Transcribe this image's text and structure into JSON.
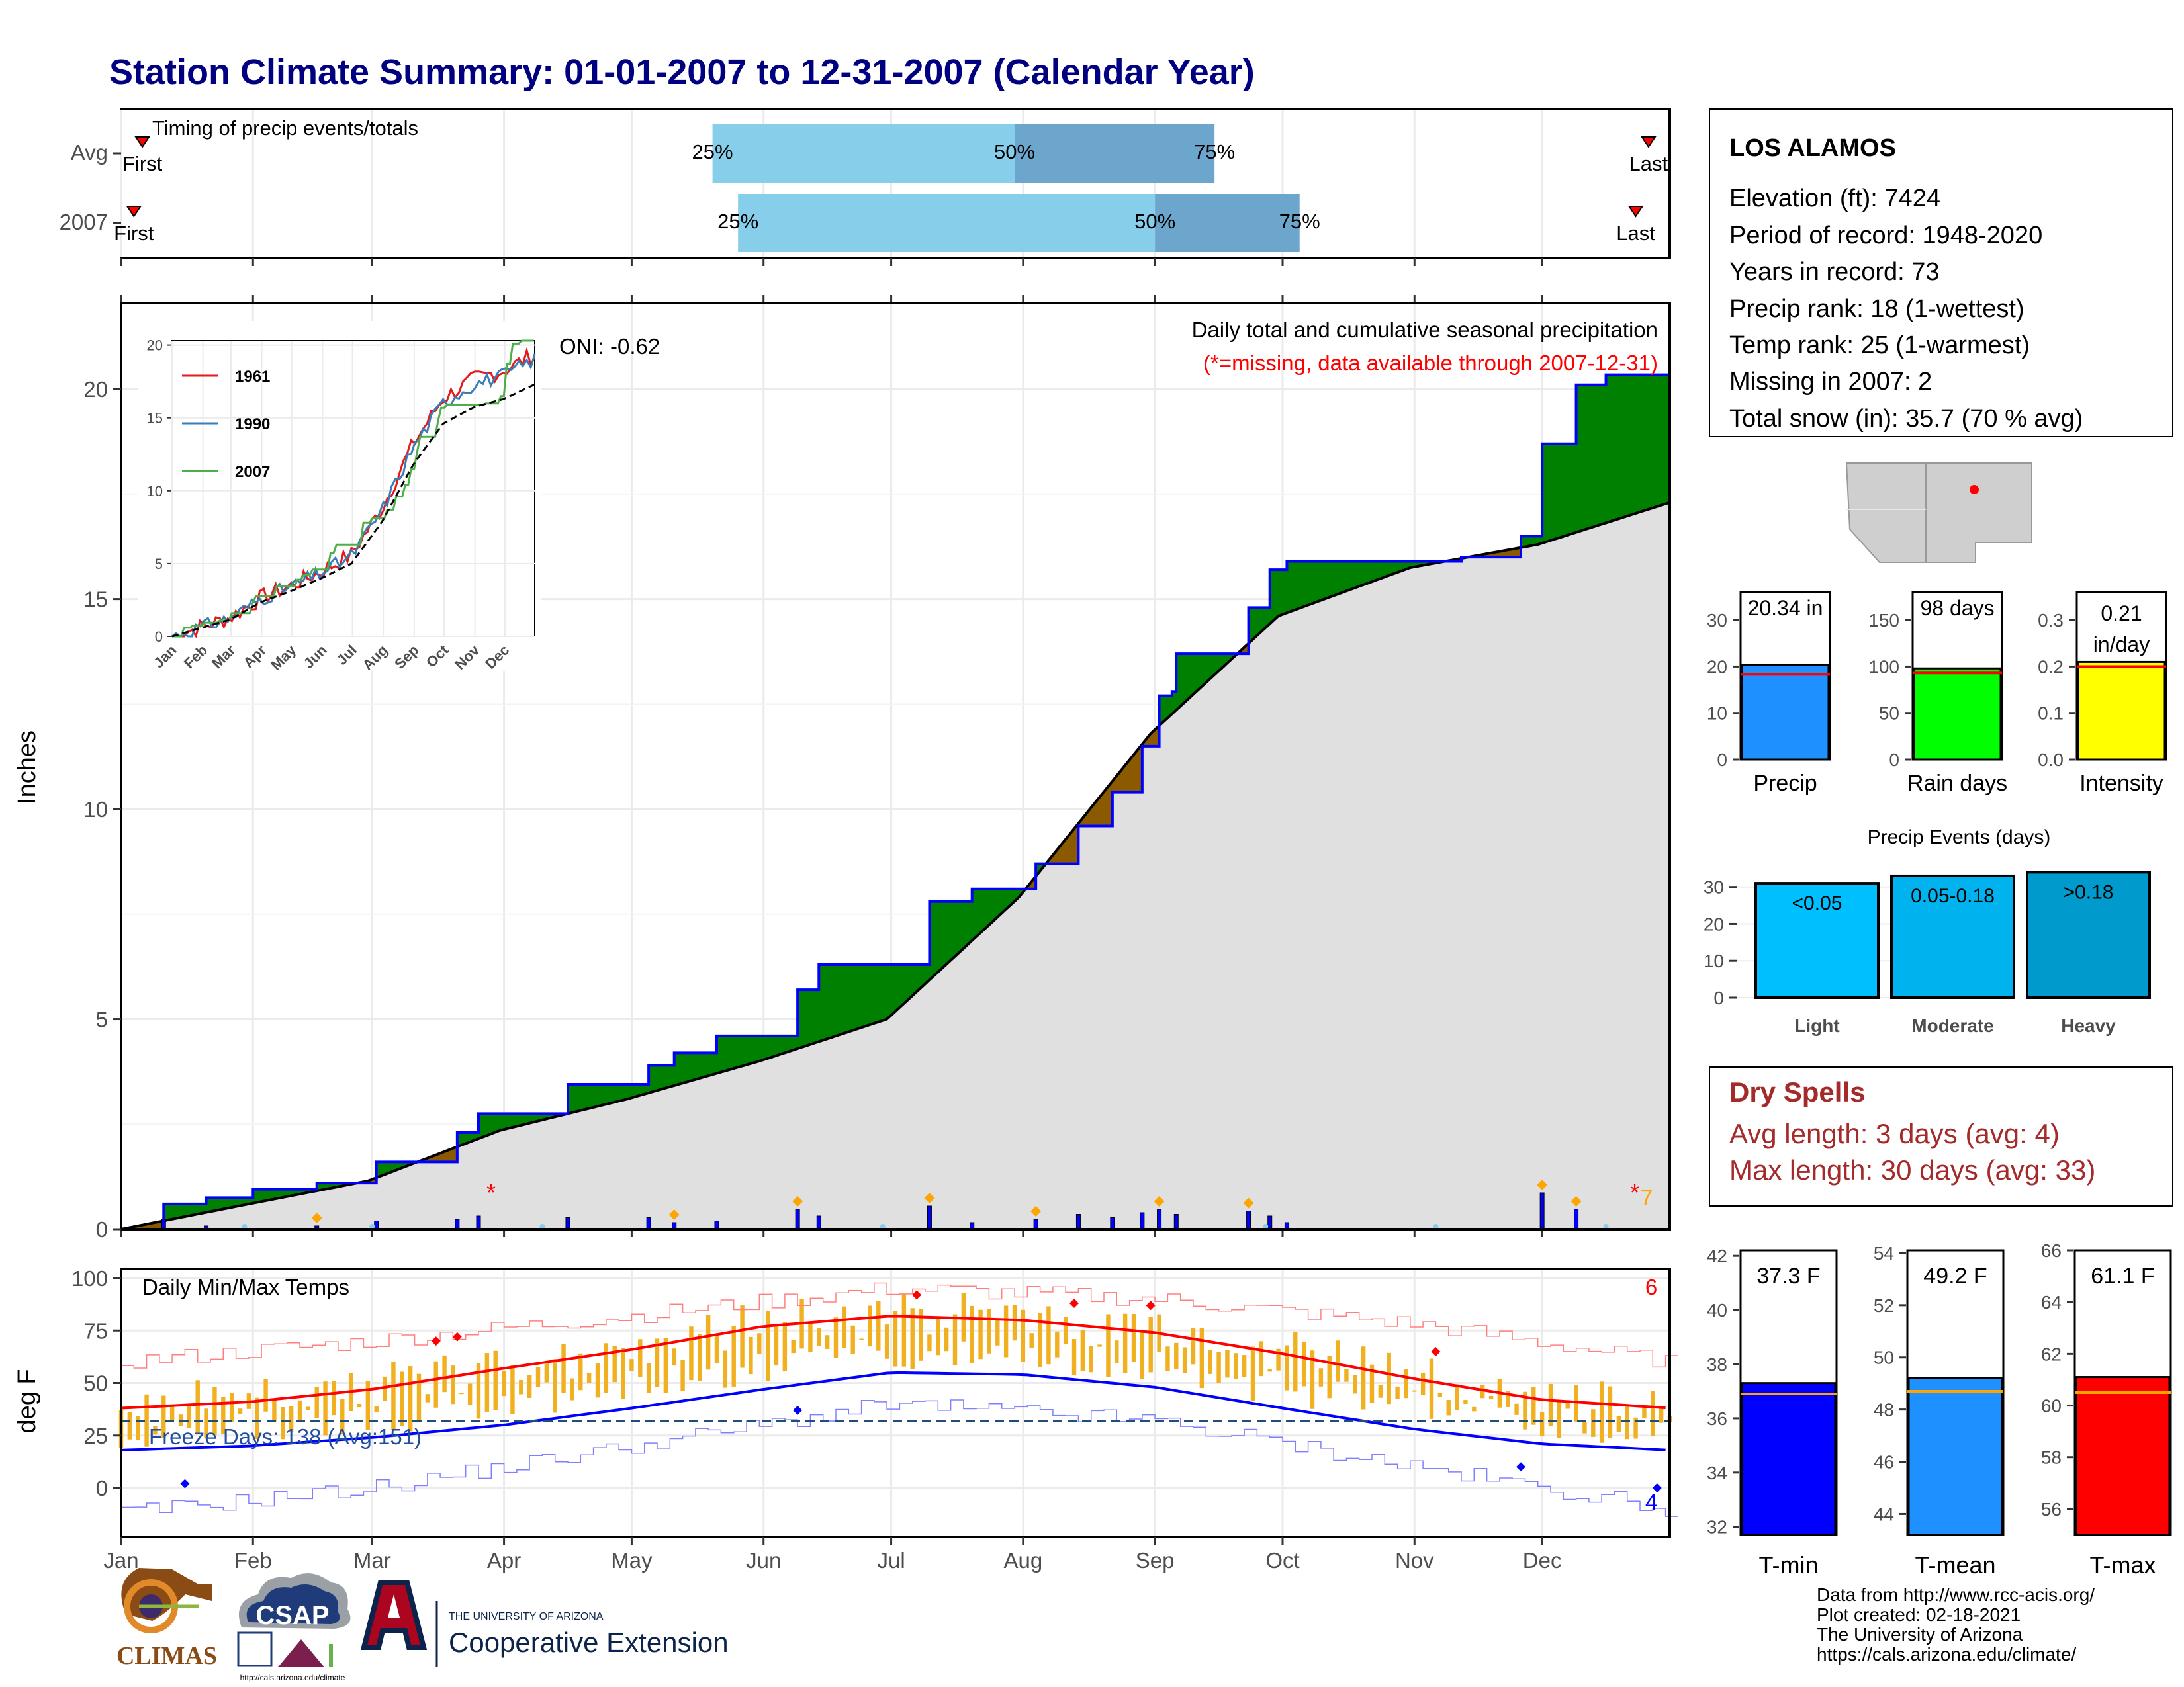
{
  "title": "Station Climate Summary: 01-01-2007 to 12-31-2007 (Calendar Year)",
  "colors": {
    "title": "#000080",
    "grid": "#ebebeb",
    "precip_line": "#0000ff",
    "surplus": "#008000",
    "deficit": "#8b5a00",
    "normal_fill": "#e0e0e0",
    "q1": "#87ceeb",
    "q2": "#6ca6cd",
    "tmax": "#ff0000",
    "tmin": "#0000ff",
    "range": "#f0b020",
    "event_marker": "#ffa500",
    "dryspell": "#a52a2a"
  },
  "timing": {
    "title": "Timing of precip events/totals",
    "rows": [
      {
        "label": "Avg",
        "first_doy": 6,
        "q25_doy": 140,
        "q50_doy": 211,
        "q75_doy": 258,
        "last_doy": 360,
        "first_label": "First",
        "last_label": "Last",
        "q25_label": "25%",
        "q50_label": "50%",
        "q75_label": "75%"
      },
      {
        "label": "2007",
        "first_doy": 4,
        "q25_doy": 146,
        "q50_doy": 244,
        "q75_doy": 278,
        "last_doy": 357,
        "first_label": "First",
        "last_label": "Last",
        "q25_label": "25%",
        "q50_label": "50%",
        "q75_label": "75%"
      }
    ]
  },
  "months": [
    "Jan",
    "Feb",
    "Mar",
    "Apr",
    "May",
    "Jun",
    "Jul",
    "Aug",
    "Sep",
    "Oct",
    "Nov",
    "Dec"
  ],
  "precip_panel": {
    "ylabel": "Inches",
    "header": "Daily total and cumulative seasonal precipitation",
    "note": "(*=missing, data available through 2007-12-31)",
    "oni": "ONI: -0.62",
    "corner_count": "7",
    "missing_mark": "*",
    "yticks": [
      "0",
      "5",
      "10",
      "15",
      "20"
    ]
  },
  "inset": {
    "legend": [
      "1961",
      "1990",
      "2007"
    ],
    "yticks": [
      "0",
      "5",
      "10",
      "15",
      "20"
    ],
    "xticks": [
      "Jan",
      "Feb",
      "Mar",
      "Apr",
      "May",
      "Jun",
      "Jul",
      "Aug",
      "Sep",
      "Oct",
      "Nov",
      "Dec"
    ]
  },
  "temp_panel": {
    "ylabel": "deg F",
    "title": "Daily Min/Max Temps",
    "freeze": "Freeze Days: 138 (Avg:151)",
    "hot_count": "6",
    "cold_count": "4",
    "yticks": [
      "0",
      "25",
      "50",
      "75",
      "100"
    ]
  },
  "station": {
    "name": "LOS ALAMOS",
    "lines": [
      "Elevation (ft): 7424",
      "Period of record: 1948-2020",
      "Years in record: 73",
      "Precip rank: 18 (1-wettest)",
      "Temp rank: 25 (1-warmest)",
      "Missing in 2007: 2",
      "Total snow (in): 35.7 (70 % avg)"
    ]
  },
  "summary_bars": [
    {
      "label": "Precip",
      "value_text": "20.34 in",
      "value": 20.34,
      "avg": 18.3,
      "ymax": 36,
      "ticks": [
        "0",
        "10",
        "20",
        "30"
      ],
      "tickvals": [
        0,
        10,
        20,
        30
      ],
      "color": "#1e90ff"
    },
    {
      "label": "Rain days",
      "value_text": "98 days",
      "value": 98,
      "avg": 93,
      "ymax": 180,
      "ticks": [
        "0",
        "50",
        "100",
        "150"
      ],
      "tickvals": [
        0,
        50,
        100,
        150
      ],
      "color": "#00ff00"
    },
    {
      "label": "Intensity",
      "value_text": "0.21",
      "value_text2": "in/day",
      "value": 0.21,
      "avg": 0.2,
      "ymax": 0.36,
      "ticks": [
        "0.0",
        "0.1",
        "0.2",
        "0.3"
      ],
      "tickvals": [
        0,
        0.1,
        0.2,
        0.3
      ],
      "color": "#ffff00"
    }
  ],
  "events": {
    "title": "Precip Events (days)",
    "ticks": [
      "0",
      "10",
      "20",
      "30"
    ],
    "tickvals": [
      0,
      10,
      20,
      30
    ],
    "bars": [
      {
        "label": "Light",
        "range": "<0.05",
        "value": 31,
        "color": "#00bfff"
      },
      {
        "label": "Moderate",
        "range": "0.05-0.18",
        "value": 33,
        "color": "#00b2ee"
      },
      {
        "label": "Heavy",
        "range": ">0.18",
        "value": 34,
        "color": "#009acd"
      }
    ]
  },
  "dry_spells": {
    "title": "Dry Spells",
    "avg": "Avg length: 3 days (avg: 4)",
    "max": "Max length: 30 days (avg: 33)"
  },
  "temp_bars": [
    {
      "label": "T-min",
      "value_text": "37.3 F",
      "value": 37.3,
      "avg": 36.9,
      "ymin": 31.7,
      "ymax": 42.2,
      "ticks": [
        "32",
        "34",
        "36",
        "38",
        "40",
        "42"
      ],
      "tickvals": [
        32,
        34,
        36,
        38,
        40,
        42
      ],
      "color": "#0000ff"
    },
    {
      "label": "T-mean",
      "value_text": "49.2 F",
      "value": 49.2,
      "avg": 48.7,
      "ymin": 43.2,
      "ymax": 54.1,
      "ticks": [
        "44",
        "46",
        "48",
        "50",
        "52",
        "54"
      ],
      "tickvals": [
        44,
        46,
        48,
        50,
        52,
        54
      ],
      "color": "#1e90ff"
    },
    {
      "label": "T-max",
      "value_text": "61.1 F",
      "value": 61.1,
      "avg": 60.5,
      "ymin": 55.0,
      "ymax": 66.0,
      "ticks": [
        "56",
        "58",
        "60",
        "62",
        "64",
        "66"
      ],
      "tickvals": [
        56,
        58,
        60,
        62,
        64,
        66
      ],
      "color": "#ff0000"
    }
  ],
  "footer": {
    "lines": [
      "Data from http://www.rcc-acis.org/",
      "Plot created: 02-18-2021",
      "The University of Arizona",
      "https://cals.arizona.edu/climate/"
    ],
    "climas": "CLIMAS",
    "csap": "CSAP",
    "csap_url": "http://cals.arizona.edu/climate",
    "ua_small": "THE UNIVERSITY OF ARIZONA",
    "coop": "Cooperative Extension"
  },
  "chart_data": [
    {
      "type": "bar",
      "name": "timing",
      "categories": [
        "Avg",
        "2007"
      ],
      "series": [
        {
          "name": "First",
          "values": [
            6,
            4
          ]
        },
        {
          "name": "25%",
          "values": [
            140,
            146
          ]
        },
        {
          "name": "50%",
          "values": [
            211,
            244
          ]
        },
        {
          "name": "75%",
          "values": [
            258,
            278
          ]
        },
        {
          "name": "Last",
          "values": [
            360,
            357
          ]
        }
      ],
      "title": "Timing of precip events/totals",
      "xlim": [
        1,
        365
      ]
    },
    {
      "type": "area",
      "name": "cumulative_precip",
      "title": "Daily total and cumulative seasonal precipitation",
      "ylabel": "Inches",
      "ylim": [
        0,
        22
      ],
      "x_unit": "day of year",
      "observed_cumulative": [
        [
          1,
          0
        ],
        [
          10,
          0
        ],
        [
          11,
          0.6
        ],
        [
          20,
          0.6
        ],
        [
          21,
          0.75
        ],
        [
          31,
          0.75
        ],
        [
          32,
          0.95
        ],
        [
          46,
          0.95
        ],
        [
          47,
          1.1
        ],
        [
          60,
          1.1
        ],
        [
          61,
          1.6
        ],
        [
          79,
          1.6
        ],
        [
          80,
          2.3
        ],
        [
          84,
          2.3
        ],
        [
          85,
          2.75
        ],
        [
          105,
          2.75
        ],
        [
          106,
          3.45
        ],
        [
          124,
          3.45
        ],
        [
          125,
          3.9
        ],
        [
          130,
          3.9
        ],
        [
          131,
          4.2
        ],
        [
          140,
          4.2
        ],
        [
          141,
          4.6
        ],
        [
          159,
          4.6
        ],
        [
          160,
          5.7
        ],
        [
          164,
          5.7
        ],
        [
          165,
          6.3
        ],
        [
          190,
          6.3
        ],
        [
          191,
          7.8
        ],
        [
          200,
          7.8
        ],
        [
          201,
          8.1
        ],
        [
          215,
          8.1
        ],
        [
          216,
          8.7
        ],
        [
          225,
          8.7
        ],
        [
          226,
          9.6
        ],
        [
          233,
          9.6
        ],
        [
          234,
          10.4
        ],
        [
          240,
          10.4
        ],
        [
          241,
          11.5
        ],
        [
          244,
          11.5
        ],
        [
          245,
          12.7
        ],
        [
          248,
          12.8
        ],
        [
          249,
          13.7
        ],
        [
          265,
          13.7
        ],
        [
          266,
          14.8
        ],
        [
          270,
          14.8
        ],
        [
          271,
          15.7
        ],
        [
          275,
          15.9
        ],
        [
          300,
          15.9
        ],
        [
          316,
          16.0
        ],
        [
          330,
          16.5
        ],
        [
          334,
          16.5
        ],
        [
          335,
          18.7
        ],
        [
          342,
          18.7
        ],
        [
          343,
          20.1
        ],
        [
          350,
          20.34
        ],
        [
          365,
          20.34
        ]
      ],
      "normal_cumulative": [
        [
          1,
          0
        ],
        [
          31,
          0.6
        ],
        [
          59,
          1.15
        ],
        [
          90,
          2.35
        ],
        [
          120,
          3.1
        ],
        [
          151,
          4.0
        ],
        [
          181,
          5.0
        ],
        [
          212,
          7.9
        ],
        [
          243,
          11.8
        ],
        [
          273,
          14.6
        ],
        [
          304,
          15.75
        ],
        [
          334,
          16.3
        ],
        [
          365,
          17.3
        ]
      ],
      "daily_precip": [
        [
          11,
          0.3
        ],
        [
          21,
          0.1
        ],
        [
          47,
          0.1
        ],
        [
          61,
          0.25
        ],
        [
          80,
          0.3
        ],
        [
          85,
          0.4
        ],
        [
          106,
          0.35
        ],
        [
          125,
          0.35
        ],
        [
          131,
          0.2
        ],
        [
          141,
          0.25
        ],
        [
          160,
          0.6
        ],
        [
          165,
          0.4
        ],
        [
          191,
          0.7
        ],
        [
          201,
          0.2
        ],
        [
          216,
          0.3
        ],
        [
          226,
          0.45
        ],
        [
          234,
          0.35
        ],
        [
          241,
          0.5
        ],
        [
          245,
          0.6
        ],
        [
          249,
          0.45
        ],
        [
          266,
          0.55
        ],
        [
          271,
          0.4
        ],
        [
          275,
          0.2
        ],
        [
          335,
          1.1
        ],
        [
          343,
          0.6
        ]
      ]
    },
    {
      "type": "line",
      "name": "temps",
      "title": "Daily Min/Max Temps",
      "ylabel": "deg F",
      "ylim": [
        -20,
        105
      ],
      "x_unit": "day of year",
      "series": [
        {
          "name": "avg_max",
          "values": [
            [
              1,
              38
            ],
            [
              31,
              41
            ],
            [
              60,
              47
            ],
            [
              91,
              57
            ],
            [
              121,
              66
            ],
            [
              152,
              77
            ],
            [
              182,
              82
            ],
            [
              213,
              80
            ],
            [
              244,
              74
            ],
            [
              274,
              64
            ],
            [
              305,
              52
            ],
            [
              335,
              42
            ],
            [
              365,
              38
            ]
          ]
        },
        {
          "name": "avg_min",
          "values": [
            [
              1,
              18
            ],
            [
              31,
              20
            ],
            [
              60,
              24
            ],
            [
              91,
              30
            ],
            [
              121,
              38
            ],
            [
              152,
              47
            ],
            [
              182,
              55
            ],
            [
              213,
              54
            ],
            [
              244,
              48
            ],
            [
              274,
              38
            ],
            [
              305,
              28
            ],
            [
              335,
              21
            ],
            [
              365,
              18
            ]
          ]
        },
        {
          "name": "record_max",
          "values": [
            [
              1,
              60
            ],
            [
              60,
              70
            ],
            [
              121,
              82
            ],
            [
              182,
              95
            ],
            [
              244,
              90
            ],
            [
              305,
              78
            ],
            [
              365,
              60
            ]
          ]
        },
        {
          "name": "record_min",
          "values": [
            [
              1,
              -12
            ],
            [
              60,
              0
            ],
            [
              121,
              20
            ],
            [
              182,
              40
            ],
            [
              244,
              32
            ],
            [
              305,
              10
            ],
            [
              365,
              -10
            ]
          ]
        }
      ],
      "freeze_line": 32
    }
  ]
}
